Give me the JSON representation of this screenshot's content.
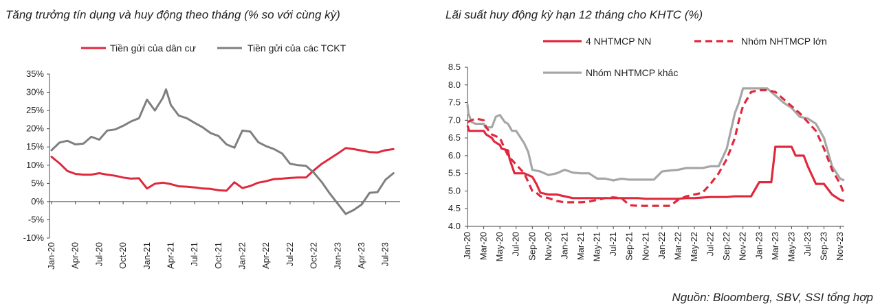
{
  "source": "Nguồn:  Bloomberg, SBV, SSI tổng hợp",
  "chart_data": [
    {
      "type": "line",
      "title": "Tăng trưởng tín dụng và huy động theo tháng (% so với cùng kỳ)",
      "ylim": [
        -10,
        35
      ],
      "yticks": [
        "35%",
        "30%",
        "25%",
        "20%",
        "15%",
        "10%",
        "5%",
        "0%",
        "-5%",
        "-10%"
      ],
      "xticks": [
        "Jan-20",
        "Apr-20",
        "Jul-20",
        "Oct-20",
        "Jan-21",
        "Apr-21",
        "Jul-21",
        "Oct-21",
        "Jan-22",
        "Apr-22",
        "Jul-22",
        "Oct-22",
        "Jan-23",
        "Apr-23",
        "Jul-23"
      ],
      "x_months": 44,
      "series": [
        {
          "name": "Tiền gửi của dân cư",
          "color": "#E0283C",
          "x": [
            0,
            1,
            2,
            3,
            4,
            5,
            6,
            7,
            8,
            9,
            10,
            11,
            12,
            13,
            14,
            15,
            16,
            17,
            18,
            19,
            20,
            21,
            22,
            23,
            24,
            25,
            26,
            27,
            28,
            29,
            30,
            31,
            32,
            33,
            34,
            35,
            36,
            37,
            38,
            39,
            40,
            41,
            42,
            43
          ],
          "values": [
            12.3,
            10.5,
            8.4,
            7.6,
            7.4,
            7.4,
            7.8,
            7.4,
            7.1,
            6.6,
            6.3,
            6.4,
            3.6,
            4.9,
            5.2,
            4.8,
            4.2,
            4.1,
            3.9,
            3.6,
            3.5,
            3.1,
            3.0,
            5.3,
            3.7,
            4.3,
            5.2,
            5.6,
            6.2,
            6.3,
            6.5,
            6.6,
            6.6,
            8.6,
            10.4,
            11.8,
            13.2,
            14.7,
            14.4,
            14.0,
            13.6,
            13.5,
            14.1,
            14.4
          ]
        },
        {
          "name": "Tiền gửi của các TCKT",
          "color": "#7F7F7F",
          "x": [
            0,
            1,
            2,
            3,
            4,
            5,
            6,
            7,
            8,
            9,
            10,
            11,
            12,
            13,
            14,
            14.4,
            15,
            16,
            17,
            18,
            19,
            20,
            21,
            22,
            23,
            24,
            25,
            26,
            27,
            28,
            29,
            30,
            31,
            32,
            33,
            34,
            35,
            36,
            37,
            38,
            39,
            40,
            41,
            42,
            43
          ],
          "values": [
            14.1,
            16.2,
            16.7,
            15.7,
            15.9,
            17.8,
            17.0,
            19.5,
            19.8,
            20.8,
            22.0,
            22.9,
            28.0,
            25.0,
            28.5,
            30.8,
            26.5,
            23.6,
            22.9,
            21.6,
            20.4,
            18.8,
            18.0,
            15.7,
            14.8,
            19.5,
            19.2,
            16.3,
            15.2,
            14.4,
            13.2,
            10.4,
            10.0,
            9.8,
            7.9,
            5.3,
            2.2,
            -0.6,
            -3.4,
            -2.3,
            -0.8,
            2.4,
            2.6,
            6.0,
            7.8
          ]
        }
      ]
    },
    {
      "type": "line",
      "title": "Lãi suất huy động kỳ hạn 12 tháng cho KHTC (%)",
      "ylim": [
        4.0,
        8.5
      ],
      "yticks": [
        "8.5",
        "8.0",
        "7.5",
        "7.0",
        "6.5",
        "6.0",
        "5.5",
        "5.0",
        "4.5",
        "4.0"
      ],
      "xticks": [
        "Jan-20",
        "Mar-20",
        "May-20",
        "Jul-20",
        "Sep-20",
        "Nov-20",
        "Jan-21",
        "Mar-21",
        "May-21",
        "Jul-21",
        "Sep-21",
        "Nov-21",
        "Jan-22",
        "Mar-22",
        "May-22",
        "Jul-22",
        "Sep-22",
        "Nov-22",
        "Jan-23",
        "Mar-23",
        "May-23",
        "Jul-23",
        "Sep-23",
        "Nov-23"
      ],
      "x_months": 46.5,
      "series": [
        {
          "name": "4 NHTMCP NN",
          "color": "#E0283C",
          "dash": "solid",
          "x": [
            0,
            0.2,
            2,
            2.3,
            3,
            3.3,
            4,
            4.2,
            5,
            5.2,
            5.8,
            6.2,
            7,
            8,
            8.5,
            9,
            10,
            10.5,
            11,
            12,
            13,
            20,
            21,
            22,
            23,
            24,
            25,
            26,
            27,
            28,
            30,
            31,
            32,
            33,
            34,
            35,
            36,
            37.5,
            38,
            38.8,
            39,
            40,
            40.5,
            41,
            41.5,
            42,
            43,
            43.5,
            44,
            45,
            46,
            46.5
          ],
          "values": [
            6.85,
            6.7,
            6.7,
            6.6,
            6.5,
            6.4,
            6.3,
            6.2,
            6.15,
            5.9,
            5.5,
            5.5,
            5.5,
            5.4,
            5.2,
            4.95,
            4.9,
            4.9,
            4.9,
            4.85,
            4.8,
            4.8,
            4.8,
            4.78,
            4.78,
            4.78,
            4.78,
            4.78,
            4.8,
            4.8,
            4.83,
            4.83,
            4.83,
            4.85,
            4.85,
            4.85,
            5.25,
            5.25,
            6.25,
            6.25,
            6.25,
            6.25,
            6.0,
            6.0,
            6.0,
            5.7,
            5.2,
            5.2,
            5.2,
            4.9,
            4.75,
            4.72
          ]
        },
        {
          "name": "Nhóm NHTMCP lớn",
          "color": "#E0283C",
          "dash": "dashed",
          "x": [
            0,
            1,
            2,
            2.3,
            3,
            4,
            5,
            6,
            7,
            8,
            8.5,
            9,
            10,
            11,
            12,
            13,
            14,
            15,
            16,
            17,
            18,
            19,
            20,
            21,
            22,
            23,
            24,
            25,
            26,
            27,
            28,
            29,
            30,
            31,
            32,
            33,
            33.5,
            34,
            35,
            36,
            37,
            38,
            39,
            40,
            41,
            42,
            43,
            44,
            45,
            46,
            46.5
          ],
          "values": [
            6.95,
            7.05,
            7.0,
            6.8,
            6.6,
            6.5,
            6.0,
            5.75,
            5.5,
            5.0,
            4.95,
            4.85,
            4.8,
            4.72,
            4.68,
            4.68,
            4.68,
            4.7,
            4.75,
            4.8,
            4.82,
            4.8,
            4.6,
            4.58,
            4.58,
            4.58,
            4.58,
            4.58,
            4.75,
            4.85,
            4.9,
            4.95,
            5.2,
            5.5,
            5.9,
            6.5,
            7.0,
            7.4,
            7.8,
            7.85,
            7.85,
            7.8,
            7.6,
            7.4,
            7.2,
            6.95,
            6.7,
            6.2,
            5.6,
            5.2,
            4.9
          ]
        },
        {
          "name": "Nhóm NHTMCP khác",
          "color": "#A6A6A6",
          "dash": "solid",
          "x": [
            0,
            0.1,
            0.5,
            1,
            2,
            2.2,
            3,
            3.5,
            4,
            4.3,
            4.6,
            5,
            5.5,
            6,
            7,
            7.5,
            8,
            9,
            10,
            11,
            12,
            13,
            14,
            15,
            16,
            17,
            18,
            19,
            20,
            21,
            22,
            23,
            24,
            25,
            26,
            27,
            28,
            29,
            30,
            31,
            32,
            33,
            33.5,
            34,
            35,
            36,
            37,
            38,
            39,
            40,
            41,
            42,
            43,
            44,
            45,
            46,
            46.5
          ],
          "values": [
            7.45,
            7.2,
            6.95,
            6.9,
            6.9,
            6.8,
            6.8,
            7.1,
            7.15,
            7.05,
            6.95,
            6.9,
            6.7,
            6.7,
            6.35,
            6.1,
            5.6,
            5.55,
            5.45,
            5.5,
            5.6,
            5.52,
            5.5,
            5.5,
            5.35,
            5.35,
            5.3,
            5.35,
            5.32,
            5.32,
            5.32,
            5.32,
            5.55,
            5.58,
            5.6,
            5.65,
            5.65,
            5.65,
            5.7,
            5.7,
            6.2,
            7.2,
            7.5,
            7.9,
            7.9,
            7.9,
            7.9,
            7.7,
            7.5,
            7.35,
            7.1,
            7.05,
            6.9,
            6.5,
            5.7,
            5.35,
            5.3
          ]
        }
      ]
    }
  ]
}
